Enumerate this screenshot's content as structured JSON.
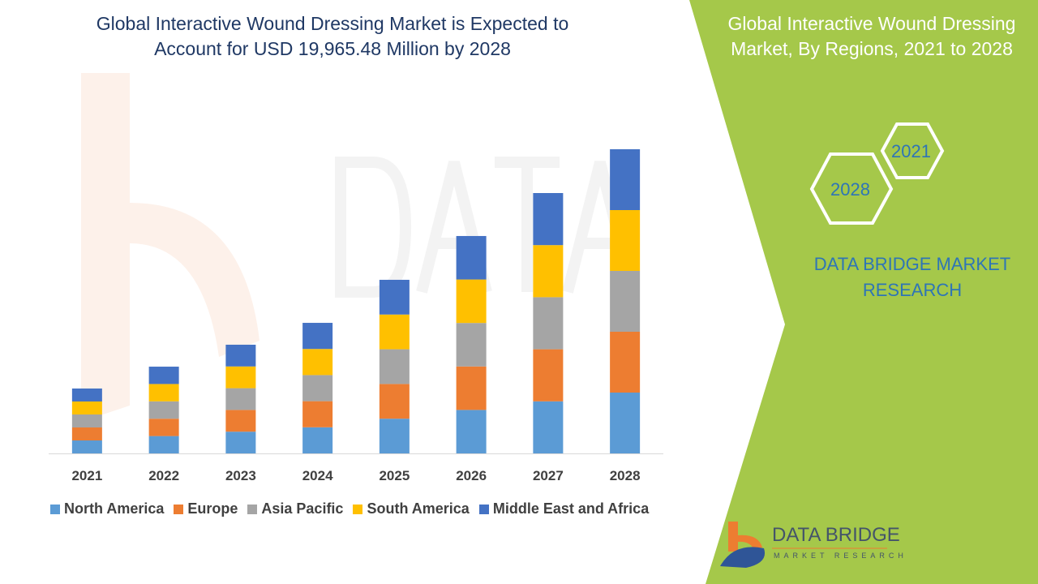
{
  "header": {
    "title": "Global Interactive Wound Dressing Market is Expected to Account for USD 19,965.48 Million by 2028",
    "title_line1": "Global Interactive Wound Dressing Market is Expected to",
    "title_line2": "Account for USD 19,965.48 Million by 2028"
  },
  "side_panel": {
    "title_line1": "Global Interactive Wound Dressing",
    "title_line2": "Market, By Regions, 2021 to 2028",
    "hex_top": "2021",
    "hex_bottom": "2028",
    "brand_line1": "DATA BRIDGE MARKET",
    "brand_line2": "RESEARCH",
    "bg_color": "#a5c84a"
  },
  "logo": {
    "name": "DATA BRIDGE",
    "sub": "MARKET RESEARCH"
  },
  "watermark": "DATA BRIDGE MARKET RESEARCH",
  "chart_data": {
    "type": "bar",
    "stacked": true,
    "categories": [
      "2021",
      "2022",
      "2023",
      "2024",
      "2025",
      "2026",
      "2027",
      "2028"
    ],
    "series": [
      {
        "name": "North America",
        "color": "#5b9bd5",
        "values": [
          852,
          1139,
          1427,
          1714,
          2279,
          2854,
          3418,
          3993
        ]
      },
      {
        "name": "Europe",
        "color": "#ed7d31",
        "values": [
          852,
          1139,
          1427,
          1714,
          2279,
          2854,
          3418,
          3993
        ]
      },
      {
        "name": "Asia Pacific",
        "color": "#a5a5a5",
        "values": [
          852,
          1139,
          1427,
          1714,
          2279,
          2854,
          3418,
          3993
        ]
      },
      {
        "name": "South America",
        "color": "#ffc000",
        "values": [
          852,
          1139,
          1427,
          1714,
          2279,
          2854,
          3418,
          3993
        ]
      },
      {
        "name": "Middle East and Africa",
        "color": "#4472c4",
        "values": [
          852,
          1139,
          1427,
          1714,
          2279,
          2854,
          3418,
          3993
        ]
      }
    ],
    "ylabel": "",
    "xlabel": "",
    "ylim": [
      0,
      21000
    ],
    "y_axis_shown": false,
    "grid": false,
    "legend": "bottom"
  }
}
